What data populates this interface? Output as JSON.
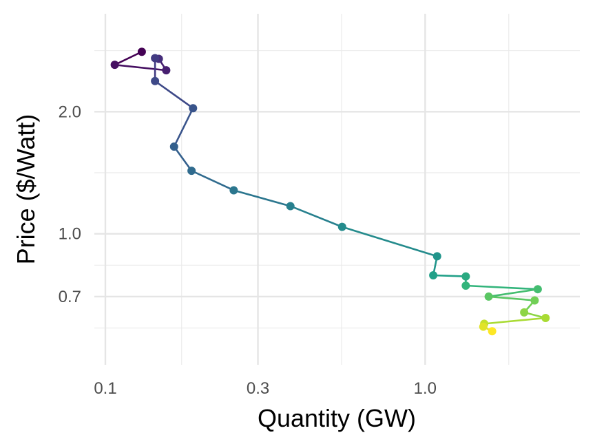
{
  "chart_data": {
    "type": "line",
    "xlabel": "Quantity (GW)",
    "ylabel": "Price ($/Watt)",
    "x_scale": "log10",
    "y_scale": "log10",
    "xlim": [
      0.1,
      2.8
    ],
    "ylim": [
      0.52,
      3.2
    ],
    "x_ticks": [
      0.1,
      0.3,
      1.0
    ],
    "x_tick_labels": [
      "0.1",
      "0.3",
      "1.0"
    ],
    "y_ticks": [
      0.7,
      1.0,
      2.0
    ],
    "y_tick_labels": [
      "0.7",
      "1.0",
      "2.0"
    ],
    "grid": true,
    "point_color_scale": "viridis (dark purple → yellow, in time order)",
    "points": [
      {
        "x": 0.13,
        "y": 2.81
      },
      {
        "x": 0.107,
        "y": 2.61
      },
      {
        "x": 0.155,
        "y": 2.53
      },
      {
        "x": 0.147,
        "y": 2.7
      },
      {
        "x": 0.143,
        "y": 2.71
      },
      {
        "x": 0.143,
        "y": 2.38
      },
      {
        "x": 0.188,
        "y": 2.04
      },
      {
        "x": 0.164,
        "y": 1.64
      },
      {
        "x": 0.186,
        "y": 1.43
      },
      {
        "x": 0.252,
        "y": 1.28
      },
      {
        "x": 0.379,
        "y": 1.17
      },
      {
        "x": 0.55,
        "y": 1.04
      },
      {
        "x": 1.09,
        "y": 0.88
      },
      {
        "x": 1.06,
        "y": 0.79
      },
      {
        "x": 1.34,
        "y": 0.785
      },
      {
        "x": 1.34,
        "y": 0.745
      },
      {
        "x": 2.25,
        "y": 0.73
      },
      {
        "x": 1.58,
        "y": 0.7
      },
      {
        "x": 2.2,
        "y": 0.685
      },
      {
        "x": 2.04,
        "y": 0.64
      },
      {
        "x": 2.38,
        "y": 0.62
      },
      {
        "x": 1.53,
        "y": 0.6
      },
      {
        "x": 1.52,
        "y": 0.59
      },
      {
        "x": 1.62,
        "y": 0.575
      }
    ]
  }
}
